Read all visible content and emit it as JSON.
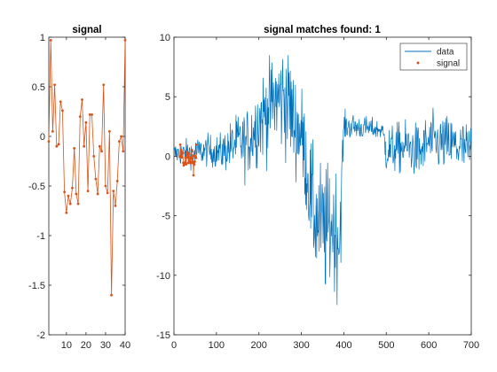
{
  "chart_data": [
    {
      "type": "line",
      "title": "signal",
      "xlabel": "",
      "ylabel": "",
      "xlim": [
        1,
        40
      ],
      "ylim": [
        -2,
        1
      ],
      "xticks": [
        10,
        20,
        30,
        40
      ],
      "yticks": [
        -2,
        -1.5,
        -1,
        -0.5,
        0,
        0.5,
        1
      ],
      "ytick_labels": [
        "-2",
        "-1.5",
        "-1",
        "-0.5",
        "0",
        "0.5",
        "1"
      ],
      "grid": false,
      "series": [
        {
          "color": "#d95319",
          "marker": "point",
          "x": [
            1,
            2,
            3,
            4,
            5,
            6,
            7,
            8,
            9,
            10,
            11,
            12,
            13,
            14,
            15,
            16,
            17,
            18,
            19,
            20,
            21,
            22,
            23,
            24,
            25,
            26,
            27,
            28,
            29,
            30,
            31,
            32,
            33,
            34,
            35,
            36,
            37,
            38,
            39,
            40
          ],
          "y": [
            -0.05,
            0.97,
            0.05,
            0.52,
            -0.1,
            -0.08,
            0.35,
            0.26,
            -0.56,
            -0.77,
            -0.6,
            -0.68,
            -0.52,
            -0.12,
            -0.58,
            -0.68,
            0.2,
            0.37,
            -0.1,
            0.14,
            -0.55,
            0.22,
            0.22,
            -0.2,
            -0.43,
            -0.58,
            -0.1,
            -0.15,
            0.52,
            -0.5,
            -0.57,
            0.05,
            -1.6,
            -0.55,
            -0.7,
            -0.45,
            -0.05,
            0.0,
            -0.15,
            0.97
          ]
        }
      ]
    },
    {
      "type": "line",
      "title": "signal matches found: 1",
      "xlabel": "",
      "ylabel": "",
      "xlim": [
        0,
        700
      ],
      "ylim": [
        -15,
        10
      ],
      "xticks": [
        0,
        100,
        200,
        300,
        400,
        500,
        600,
        700
      ],
      "yticks": [
        -15,
        -10,
        -5,
        0,
        5,
        10
      ],
      "grid": false,
      "legend": {
        "location": "top-right",
        "entries": [
          "data",
          "signal"
        ]
      },
      "series": [
        {
          "name": "data",
          "color": "#0072bd",
          "marker": "none",
          "x_step": 1,
          "profile_points": [
            [
              0,
              0.2
            ],
            [
              40,
              0.3
            ],
            [
              80,
              0.5
            ],
            [
              110,
              0.3
            ],
            [
              150,
              1.2
            ],
            [
              170,
              1.0
            ],
            [
              200,
              3.0
            ],
            [
              240,
              4.8
            ],
            [
              270,
              5.0
            ],
            [
              280,
              2.8
            ],
            [
              300,
              2.0
            ],
            [
              330,
              -5.0
            ],
            [
              360,
              -6.5
            ],
            [
              370,
              -5.5
            ],
            [
              390,
              -7.0
            ],
            [
              400,
              2.5
            ],
            [
              420,
              2.5
            ],
            [
              490,
              2.2
            ],
            [
              500,
              0.5
            ],
            [
              550,
              0.8
            ],
            [
              580,
              0.3
            ],
            [
              600,
              1.2
            ],
            [
              650,
              1.0
            ],
            [
              690,
              0.5
            ],
            [
              700,
              0.5
            ]
          ],
          "spread_points": [
            [
              0,
              0.5
            ],
            [
              100,
              0.7
            ],
            [
              150,
              1.2
            ],
            [
              200,
              1.8
            ],
            [
              270,
              2.5
            ],
            [
              300,
              2.0
            ],
            [
              330,
              2.4
            ],
            [
              360,
              2.8
            ],
            [
              390,
              2.6
            ],
            [
              400,
              0.6
            ],
            [
              490,
              0.4
            ],
            [
              500,
              1.0
            ],
            [
              600,
              1.2
            ],
            [
              700,
              1.2
            ]
          ]
        },
        {
          "name": "signal",
          "color": "#d95319",
          "marker": "point",
          "x_offset": 14,
          "x_step": 1,
          "y": [
            -0.05,
            0.97,
            0.05,
            0.52,
            -0.1,
            -0.08,
            0.35,
            0.26,
            -0.56,
            -0.77,
            -0.6,
            -0.68,
            -0.52,
            -0.12,
            -0.58,
            -0.68,
            0.2,
            0.37,
            -0.1,
            0.14,
            -0.55,
            0.22,
            0.22,
            -0.2,
            -0.43,
            -0.58,
            -0.1,
            -0.15,
            0.52,
            -0.5,
            -0.57,
            0.05,
            -1.6,
            -0.55,
            -0.7,
            -0.45,
            -0.05,
            0.0,
            -0.15,
            0.97
          ]
        }
      ]
    }
  ]
}
